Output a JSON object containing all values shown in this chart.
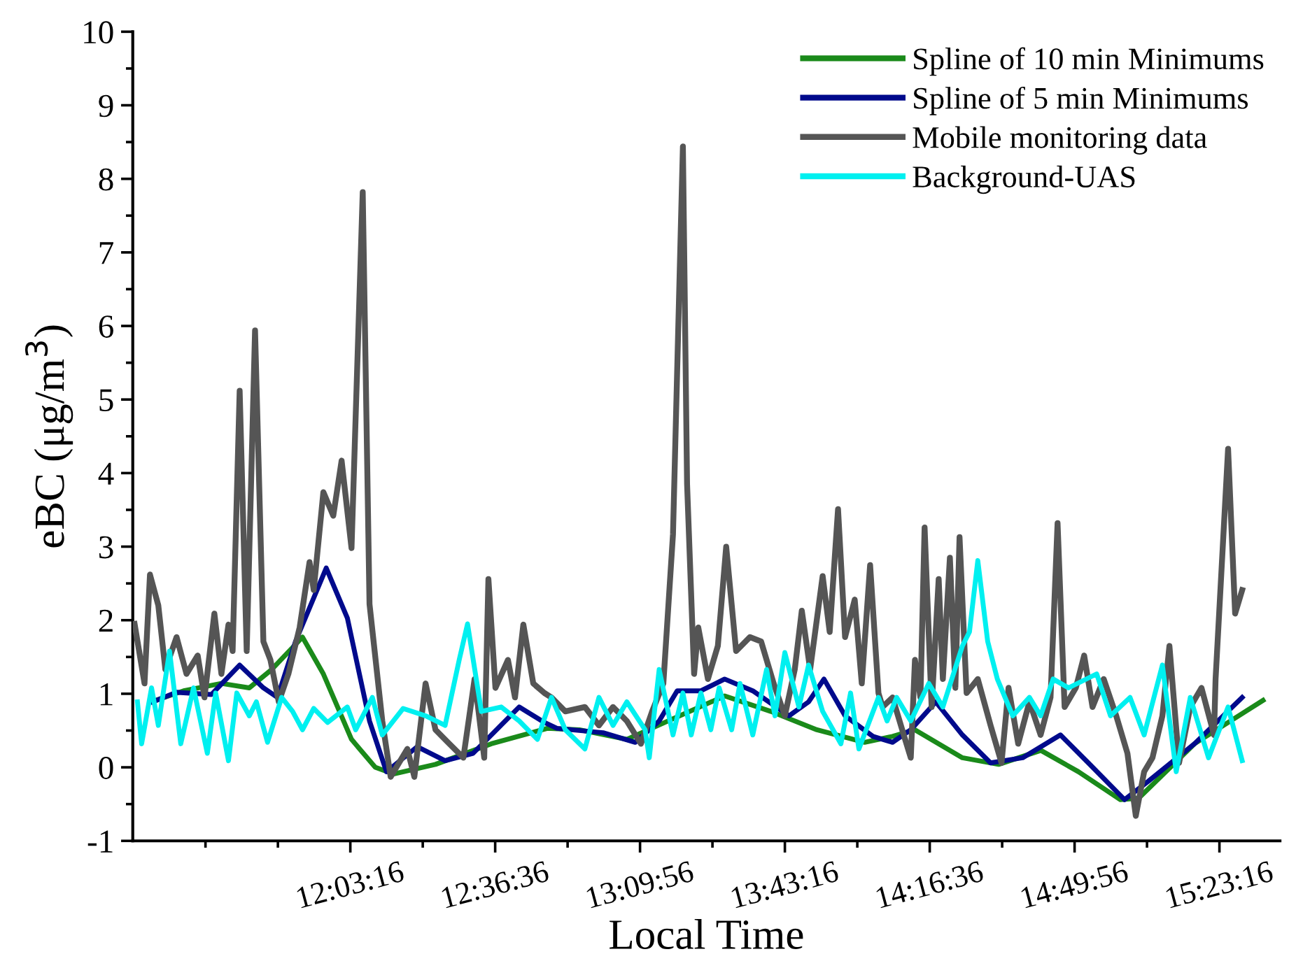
{
  "chart_data": {
    "type": "line",
    "xlabel": "Local Time",
    "ylabel": "eBC (μg/m$^{3}$)",
    "xlim": [
      11.22,
      15.62
    ],
    "ylim": [
      -1,
      10
    ],
    "xticks": [
      {
        "value": 11.49889,
        "label": null
      },
      {
        "value": 11.77667,
        "label": null
      },
      {
        "value": 12.05444,
        "label": "12:03:16"
      },
      {
        "value": 12.33222,
        "label": null
      },
      {
        "value": 12.61,
        "label": "12:36:36"
      },
      {
        "value": 12.88778,
        "label": null
      },
      {
        "value": 13.16556,
        "label": "13:09:56"
      },
      {
        "value": 13.44333,
        "label": null
      },
      {
        "value": 13.72111,
        "label": "13:43:16"
      },
      {
        "value": 13.99889,
        "label": null
      },
      {
        "value": 14.27667,
        "label": "14:16:36"
      },
      {
        "value": 14.55444,
        "label": null
      },
      {
        "value": 14.83222,
        "label": "14:49:56"
      },
      {
        "value": 15.11,
        "label": null
      },
      {
        "value": 15.38778,
        "label": "15:23:16"
      }
    ],
    "yticks": [
      -1,
      {
        "value": -0.5,
        "label": null
      },
      0,
      {
        "value": 0.5,
        "label": null
      },
      1,
      {
        "value": 1.5,
        "label": null
      },
      2,
      {
        "value": 2.5,
        "label": null
      },
      3,
      {
        "value": 3.5,
        "label": null
      },
      4,
      {
        "value": 4.5,
        "label": null
      },
      5,
      {
        "value": 5.5,
        "label": null
      },
      6,
      {
        "value": 6.5,
        "label": null
      },
      7,
      {
        "value": 7.5,
        "label": null
      },
      8,
      {
        "value": 8.5,
        "label": null
      },
      9,
      {
        "value": 9.5,
        "label": null
      },
      10
    ],
    "grid": false,
    "legend": "top right",
    "marker": "none",
    "line_style": "solid",
    "series": [
      {
        "name": "Spline of 10 min Minimums",
        "color": "#1a8a1a",
        "x": [
          11.308,
          11.415,
          11.56,
          11.667,
          11.753,
          11.871,
          11.951,
          12.059,
          12.15,
          12.22,
          12.381,
          12.595,
          12.81,
          12.933,
          13.115,
          13.292,
          13.49,
          13.667,
          13.844,
          14.027,
          14.134,
          14.22,
          14.402,
          14.541,
          14.703,
          14.847,
          15.008,
          15.078,
          15.292,
          15.555
        ],
        "values": [
          0.91,
          1.04,
          1.14,
          1.08,
          1.33,
          1.77,
          1.27,
          0.38,
          0.0,
          -0.09,
          0.04,
          0.32,
          0.53,
          0.51,
          0.38,
          0.66,
          0.97,
          0.76,
          0.51,
          0.34,
          0.42,
          0.51,
          0.13,
          0.04,
          0.23,
          -0.06,
          -0.44,
          -0.42,
          0.32,
          0.91
        ]
      },
      {
        "name": "Spline of 5 min Minimums",
        "color": "#000a8c",
        "x": [
          11.297,
          11.388,
          11.522,
          11.63,
          11.721,
          11.775,
          11.844,
          11.962,
          12.043,
          12.128,
          12.193,
          12.311,
          12.418,
          12.525,
          12.702,
          12.799,
          12.847,
          13.024,
          13.147,
          13.239,
          13.308,
          13.399,
          13.49,
          13.598,
          13.737,
          13.812,
          13.871,
          13.952,
          14.059,
          14.134,
          14.204,
          14.3,
          14.402,
          14.51,
          14.633,
          14.778,
          14.885,
          15.024,
          15.115,
          15.292,
          15.475
        ],
        "values": [
          0.89,
          1.02,
          0.99,
          1.39,
          1.08,
          0.95,
          1.71,
          2.71,
          2.03,
          0.63,
          -0.06,
          0.28,
          0.09,
          0.19,
          0.82,
          0.61,
          0.53,
          0.47,
          0.34,
          0.63,
          1.04,
          1.04,
          1.2,
          1.04,
          0.7,
          0.89,
          1.2,
          0.7,
          0.42,
          0.34,
          0.51,
          0.89,
          0.44,
          0.06,
          0.13,
          0.44,
          0.06,
          -0.44,
          -0.19,
          0.32,
          0.95
        ]
      },
      {
        "name": "Mobile monitoring data",
        "color": "#555555",
        "x": [
          11.227,
          11.265,
          11.286,
          11.318,
          11.345,
          11.388,
          11.426,
          11.469,
          11.495,
          11.533,
          11.56,
          11.587,
          11.603,
          11.63,
          11.657,
          11.689,
          11.721,
          11.748,
          11.78,
          11.817,
          11.86,
          11.898,
          11.914,
          11.951,
          11.989,
          12.021,
          12.059,
          12.102,
          12.128,
          12.177,
          12.209,
          12.273,
          12.3,
          12.343,
          12.381,
          12.434,
          12.488,
          12.531,
          12.568,
          12.584,
          12.611,
          12.659,
          12.686,
          12.718,
          12.756,
          12.799,
          12.826,
          12.879,
          12.954,
          13.008,
          13.062,
          13.115,
          13.169,
          13.212,
          13.255,
          13.292,
          13.33,
          13.346,
          13.373,
          13.389,
          13.426,
          13.464,
          13.496,
          13.534,
          13.587,
          13.63,
          13.678,
          13.721,
          13.759,
          13.786,
          13.818,
          13.866,
          13.893,
          13.925,
          13.952,
          13.989,
          14.016,
          14.048,
          14.08,
          14.096,
          14.134,
          14.177,
          14.204,
          14.22,
          14.241,
          14.257,
          14.284,
          14.311,
          14.327,
          14.354,
          14.375,
          14.391,
          14.418,
          14.461,
          14.51,
          14.552,
          14.579,
          14.616,
          14.659,
          14.702,
          14.74,
          14.767,
          14.794,
          14.837,
          14.869,
          14.901,
          14.944,
          14.992,
          15.035,
          15.067,
          15.099,
          15.131,
          15.169,
          15.196,
          15.233,
          15.276,
          15.319,
          15.367,
          15.373,
          15.421,
          15.448,
          15.475
        ],
        "values": [
          1.95,
          1.14,
          2.62,
          2.2,
          1.33,
          1.77,
          1.27,
          1.52,
          0.95,
          2.09,
          1.27,
          1.94,
          1.58,
          5.12,
          1.58,
          5.94,
          1.71,
          1.46,
          0.89,
          1.27,
          1.9,
          2.79,
          2.41,
          3.74,
          3.42,
          4.17,
          2.98,
          7.82,
          2.22,
          0.63,
          -0.13,
          0.25,
          -0.13,
          1.14,
          0.51,
          0.32,
          0.13,
          1.2,
          0.13,
          2.56,
          1.08,
          1.46,
          0.95,
          1.94,
          1.14,
          1.01,
          0.95,
          0.76,
          0.82,
          0.57,
          0.82,
          0.63,
          0.32,
          0.76,
          1.14,
          3.17,
          8.44,
          3.85,
          1.27,
          1.9,
          1.2,
          1.65,
          3.0,
          1.58,
          1.77,
          1.71,
          1.14,
          0.7,
          1.33,
          2.13,
          1.33,
          2.6,
          1.84,
          3.51,
          1.77,
          2.28,
          1.14,
          2.75,
          1.01,
          0.82,
          0.95,
          0.44,
          0.13,
          1.46,
          0.95,
          3.26,
          0.82,
          2.56,
          1.2,
          2.85,
          1.08,
          3.13,
          1.01,
          1.2,
          0.57,
          0.06,
          1.08,
          0.32,
          0.89,
          0.44,
          0.95,
          3.32,
          0.82,
          1.08,
          1.52,
          0.82,
          1.2,
          0.7,
          0.19,
          -0.66,
          -0.06,
          0.13,
          0.7,
          1.65,
          0.06,
          0.82,
          1.08,
          0.44,
          1.2,
          4.33,
          2.09,
          2.41
        ]
      },
      {
        "name": "Background-UAS",
        "color": "#00f0f0",
        "x": [
          11.238,
          11.254,
          11.292,
          11.318,
          11.361,
          11.404,
          11.453,
          11.506,
          11.538,
          11.587,
          11.619,
          11.667,
          11.694,
          11.737,
          11.791,
          11.833,
          11.871,
          11.914,
          11.967,
          12.043,
          12.075,
          12.139,
          12.177,
          12.257,
          12.343,
          12.418,
          12.472,
          12.504,
          12.557,
          12.633,
          12.702,
          12.772,
          12.826,
          12.879,
          12.954,
          13.008,
          13.062,
          13.115,
          13.185,
          13.201,
          13.239,
          13.292,
          13.33,
          13.362,
          13.399,
          13.437,
          13.469,
          13.517,
          13.549,
          13.598,
          13.651,
          13.683,
          13.721,
          13.775,
          13.812,
          13.866,
          13.936,
          13.973,
          14.005,
          14.08,
          14.113,
          14.15,
          14.204,
          14.273,
          14.327,
          14.402,
          14.429,
          14.461,
          14.499,
          14.536,
          14.595,
          14.659,
          14.702,
          14.75,
          14.809,
          14.917,
          14.97,
          15.045,
          15.099,
          15.169,
          15.222,
          15.276,
          15.346,
          15.421,
          15.475
        ],
        "values": [
          0.89,
          0.32,
          1.08,
          0.57,
          1.58,
          0.32,
          1.08,
          0.19,
          1.01,
          0.09,
          1.01,
          0.7,
          0.89,
          0.34,
          0.95,
          0.76,
          0.51,
          0.8,
          0.61,
          0.82,
          0.51,
          0.95,
          0.44,
          0.8,
          0.7,
          0.57,
          1.46,
          1.95,
          0.76,
          0.82,
          0.63,
          0.38,
          0.95,
          0.51,
          0.25,
          0.95,
          0.57,
          0.89,
          0.51,
          0.13,
          1.33,
          0.44,
          1.01,
          0.44,
          1.01,
          0.51,
          1.08,
          0.51,
          1.14,
          0.44,
          1.33,
          0.7,
          1.56,
          0.82,
          1.39,
          0.76,
          0.32,
          1.01,
          0.25,
          0.95,
          0.63,
          0.95,
          0.63,
          1.14,
          0.82,
          1.65,
          1.84,
          2.81,
          1.71,
          1.2,
          0.7,
          0.95,
          0.7,
          1.2,
          1.08,
          1.27,
          0.7,
          0.95,
          0.44,
          1.39,
          -0.06,
          0.95,
          0.13,
          0.82,
          0.09
        ]
      }
    ]
  }
}
